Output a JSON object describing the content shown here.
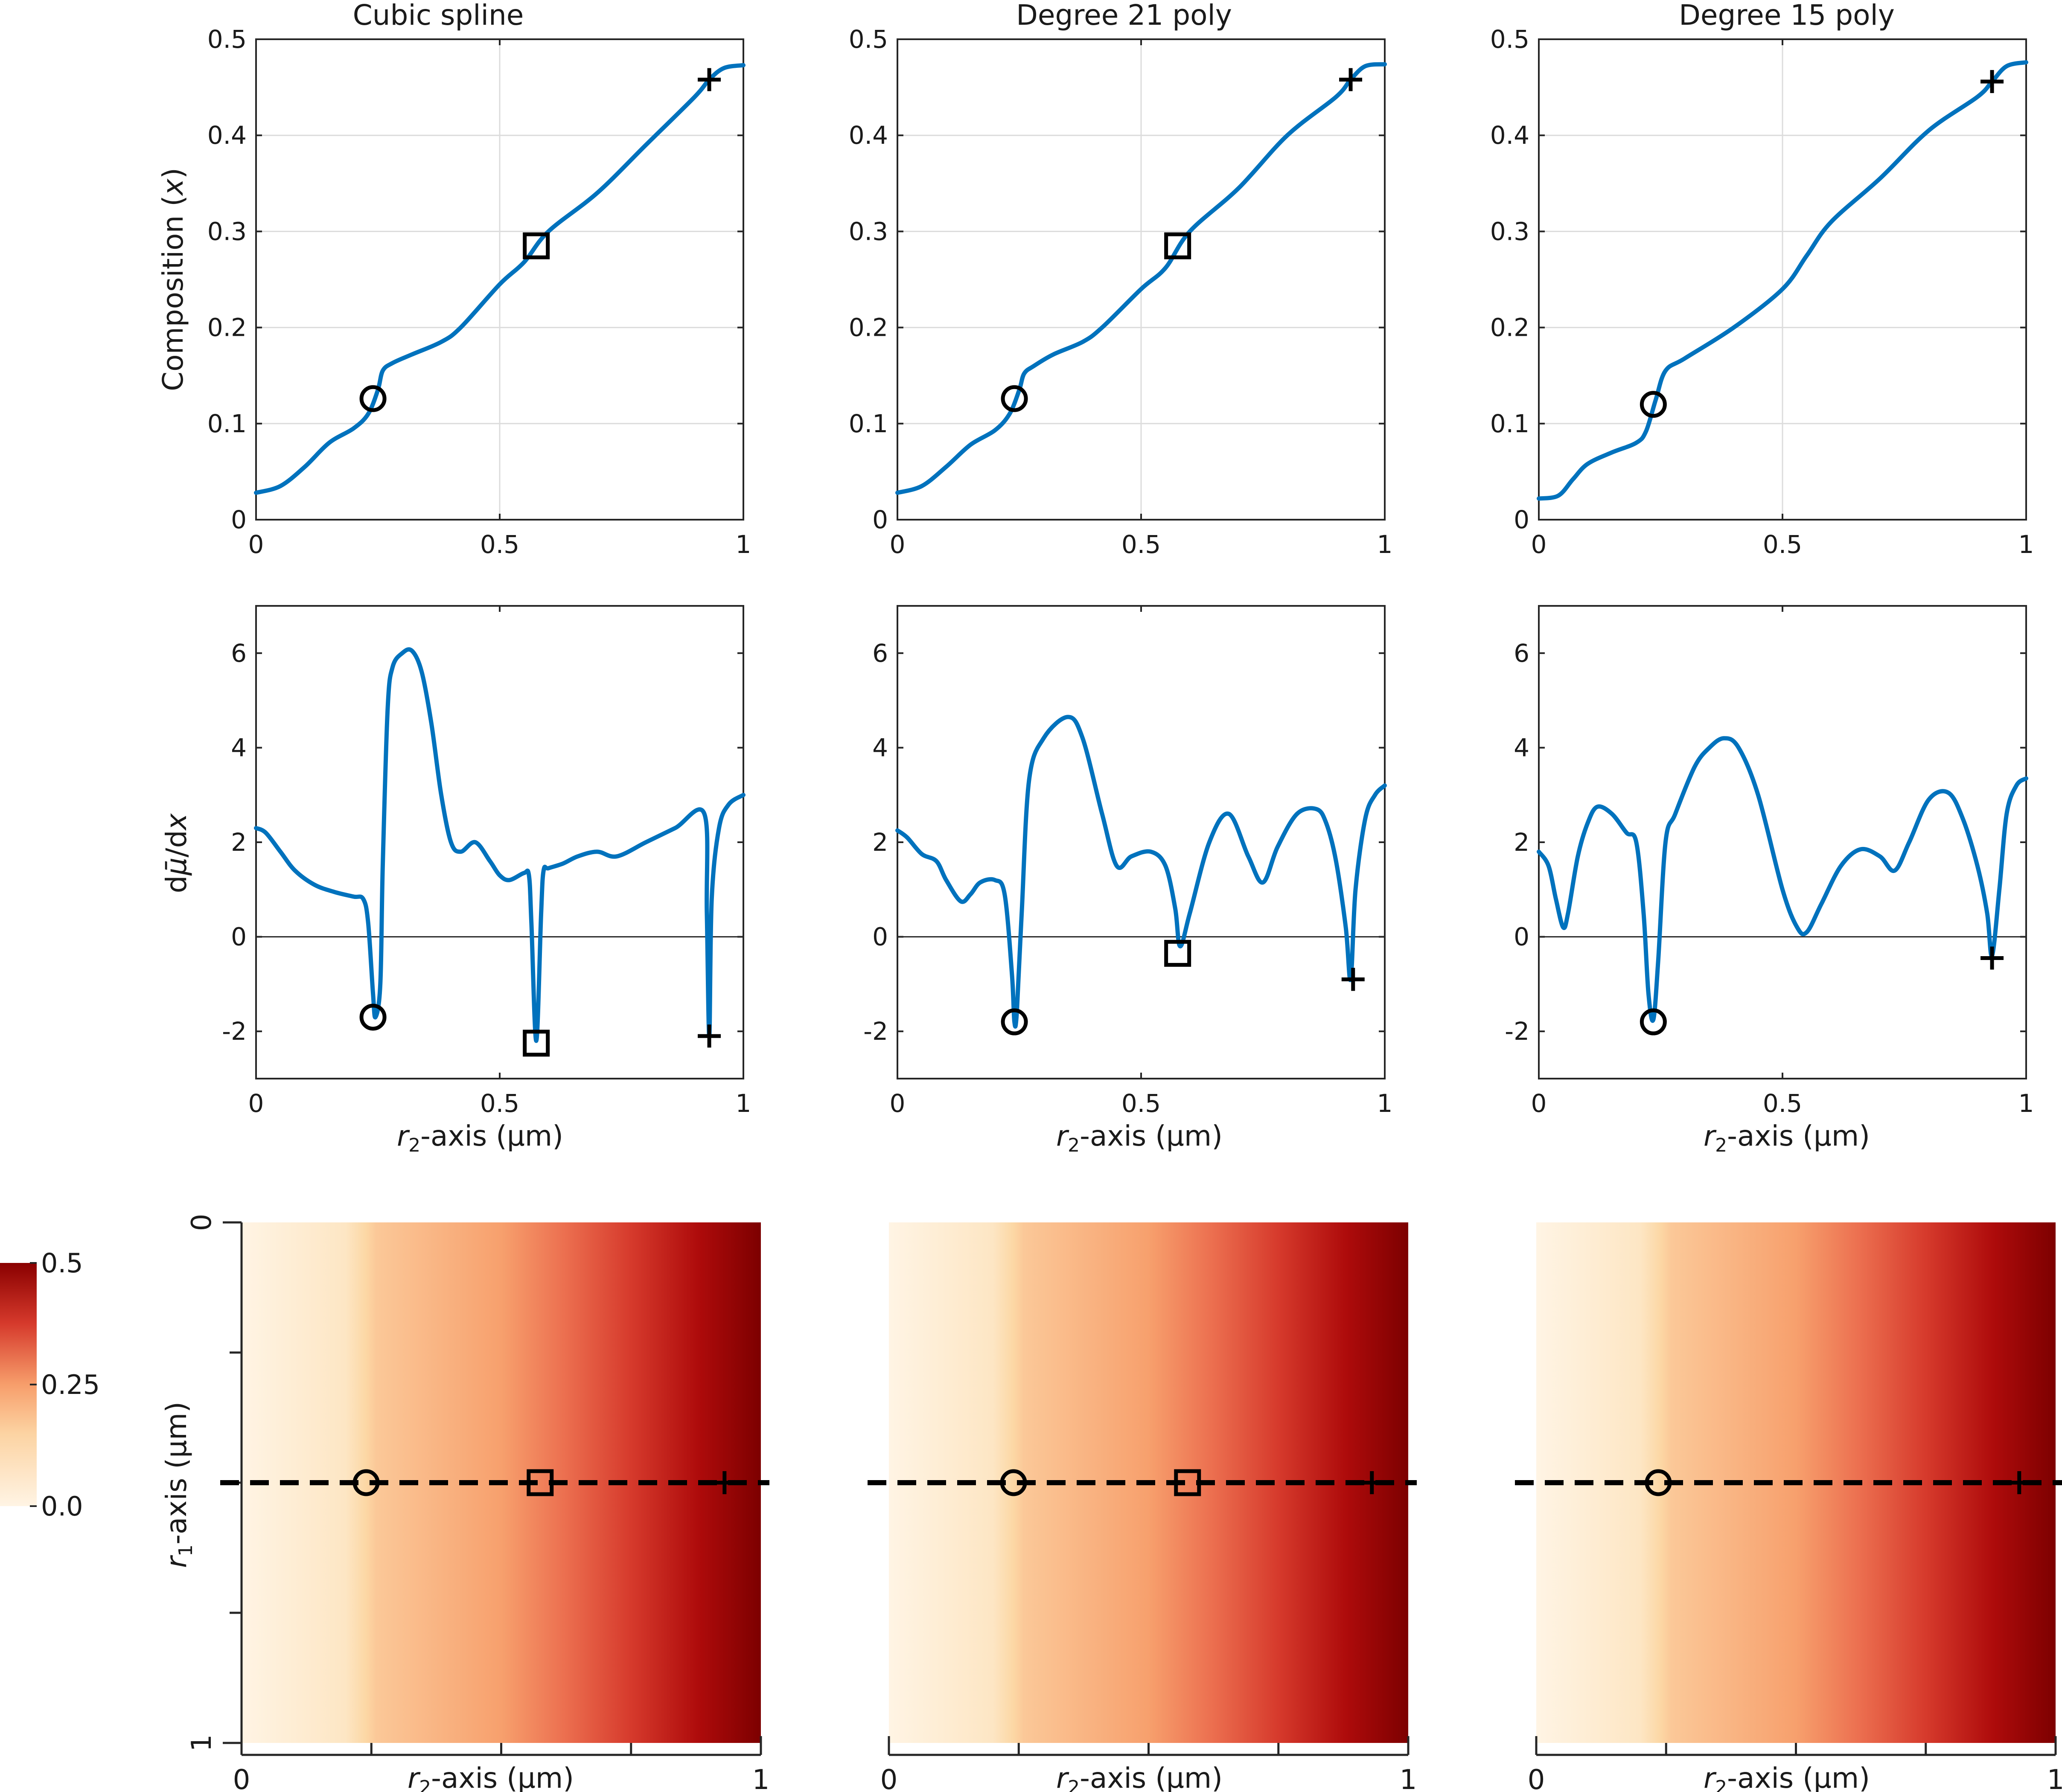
{
  "colors": {
    "line": "#0072bd",
    "axis": "#262626",
    "grid": "#dcdcdc",
    "marker": "#000000",
    "colormap": [
      "#fff5e6",
      "#fcd7a6",
      "#f7a06d",
      "#e8553a",
      "#c41f19",
      "#990000",
      "#7a0000"
    ]
  },
  "y_labels": {
    "composition_pre": "Composition (",
    "composition_var": "x",
    "composition_post": ")",
    "dmu_d": "d",
    "dmu_mu": "μ̄",
    "dmu_mid": "/d",
    "dmu_x": "x"
  },
  "x_label": {
    "r": "r",
    "sub2": "2",
    "rest": "-axis (μm)"
  },
  "r1_label": {
    "r": "r",
    "sub1": "1",
    "rest": "-axis (μm)"
  },
  "colorbar": {
    "ticks": [
      "0.5",
      "0.25",
      "0.0"
    ],
    "range": [
      0,
      0.5
    ]
  },
  "chart_data": [
    {
      "type": "line",
      "title": "Cubic spline",
      "panel": "composition",
      "xlim": [
        0,
        1
      ],
      "ylim": [
        0,
        0.5
      ],
      "xticks": [
        "0",
        "0.5",
        "1"
      ],
      "yticks": [
        "0",
        "0.1",
        "0.2",
        "0.3",
        "0.4",
        "0.5"
      ],
      "grid": true,
      "x": [
        0,
        0.05,
        0.1,
        0.15,
        0.2,
        0.23,
        0.25,
        0.26,
        0.28,
        0.32,
        0.38,
        0.42,
        0.5,
        0.55,
        0.6,
        0.7,
        0.8,
        0.9,
        0.93,
        0.96,
        1.0
      ],
      "y": [
        0.028,
        0.035,
        0.055,
        0.08,
        0.095,
        0.11,
        0.135,
        0.155,
        0.163,
        0.172,
        0.185,
        0.2,
        0.245,
        0.268,
        0.3,
        0.34,
        0.39,
        0.44,
        0.458,
        0.47,
        0.473
      ],
      "markers": [
        {
          "shape": "circle",
          "x": 0.24,
          "y": 0.126
        },
        {
          "shape": "square",
          "x": 0.575,
          "y": 0.285
        },
        {
          "shape": "plus",
          "x": 0.93,
          "y": 0.458
        }
      ]
    },
    {
      "type": "line",
      "title": "Degree 21 poly",
      "panel": "composition",
      "xlim": [
        0,
        1
      ],
      "ylim": [
        0,
        0.5
      ],
      "xticks": [
        "0",
        "0.5",
        "1"
      ],
      "yticks": [
        "0",
        "0.1",
        "0.2",
        "0.3",
        "0.4",
        "0.5"
      ],
      "grid": true,
      "x": [
        0,
        0.05,
        0.1,
        0.15,
        0.2,
        0.23,
        0.25,
        0.26,
        0.28,
        0.32,
        0.38,
        0.42,
        0.5,
        0.55,
        0.6,
        0.7,
        0.8,
        0.9,
        0.93,
        0.96,
        1.0
      ],
      "y": [
        0.028,
        0.035,
        0.055,
        0.078,
        0.093,
        0.11,
        0.135,
        0.152,
        0.16,
        0.172,
        0.185,
        0.2,
        0.24,
        0.262,
        0.3,
        0.345,
        0.4,
        0.44,
        0.458,
        0.472,
        0.474
      ],
      "markers": [
        {
          "shape": "circle",
          "x": 0.24,
          "y": 0.126
        },
        {
          "shape": "square",
          "x": 0.575,
          "y": 0.285
        },
        {
          "shape": "plus",
          "x": 0.93,
          "y": 0.458
        }
      ]
    },
    {
      "type": "line",
      "title": "Degree 15 poly",
      "panel": "composition",
      "xlim": [
        0,
        1
      ],
      "ylim": [
        0,
        0.5
      ],
      "xticks": [
        "0",
        "0.5",
        "1"
      ],
      "yticks": [
        "0",
        "0.1",
        "0.2",
        "0.3",
        "0.4",
        "0.5"
      ],
      "grid": true,
      "x": [
        0,
        0.04,
        0.07,
        0.1,
        0.15,
        0.2,
        0.22,
        0.24,
        0.26,
        0.3,
        0.4,
        0.5,
        0.55,
        0.6,
        0.7,
        0.8,
        0.9,
        0.93,
        0.96,
        1.0
      ],
      "y": [
        0.022,
        0.025,
        0.042,
        0.058,
        0.07,
        0.08,
        0.092,
        0.125,
        0.155,
        0.168,
        0.2,
        0.24,
        0.275,
        0.31,
        0.355,
        0.405,
        0.44,
        0.456,
        0.472,
        0.476
      ],
      "markers": [
        {
          "shape": "circle",
          "x": 0.235,
          "y": 0.12
        },
        {
          "shape": "plus",
          "x": 0.93,
          "y": 0.456
        }
      ]
    },
    {
      "type": "line",
      "panel": "derivative",
      "xlim": [
        0,
        1
      ],
      "ylim": [
        -3,
        7
      ],
      "xticks": [
        "0",
        "0.5",
        "1"
      ],
      "yticks": [
        "-2",
        "0",
        "2",
        "4",
        "6"
      ],
      "zero_line": true,
      "x": [
        0,
        0.02,
        0.05,
        0.08,
        0.12,
        0.16,
        0.2,
        0.22,
        0.23,
        0.24,
        0.245,
        0.255,
        0.26,
        0.27,
        0.28,
        0.3,
        0.32,
        0.34,
        0.36,
        0.38,
        0.4,
        0.42,
        0.45,
        0.48,
        0.5,
        0.52,
        0.55,
        0.56,
        0.565,
        0.575,
        0.585,
        0.59,
        0.6,
        0.63,
        0.66,
        0.7,
        0.74,
        0.8,
        0.86,
        0.92,
        0.925,
        0.93,
        0.935,
        0.95,
        0.97,
        1.0
      ],
      "y": [
        2.3,
        2.2,
        1.8,
        1.4,
        1.1,
        0.95,
        0.85,
        0.8,
        0.3,
        -1.2,
        -1.7,
        -1.0,
        1.5,
        4.8,
        5.7,
        6.0,
        6.05,
        5.6,
        4.5,
        3.0,
        2.0,
        1.8,
        2.0,
        1.6,
        1.3,
        1.2,
        1.35,
        1.3,
        0.3,
        -2.2,
        0.5,
        1.4,
        1.45,
        1.55,
        1.7,
        1.8,
        1.7,
        2.0,
        2.3,
        2.6,
        0.5,
        -2.1,
        0.8,
        2.3,
        2.8,
        3.0
      ],
      "markers": [
        {
          "shape": "circle",
          "x": 0.24,
          "y": -1.7
        },
        {
          "shape": "square",
          "x": 0.575,
          "y": -2.25
        },
        {
          "shape": "plus",
          "x": 0.93,
          "y": -2.1
        }
      ]
    },
    {
      "type": "line",
      "panel": "derivative",
      "xlim": [
        0,
        1
      ],
      "ylim": [
        -3,
        7
      ],
      "xticks": [
        "0",
        "0.5",
        "1"
      ],
      "yticks": [
        "-2",
        "0",
        "2",
        "4",
        "6"
      ],
      "zero_line": true,
      "x": [
        0,
        0.02,
        0.05,
        0.08,
        0.1,
        0.13,
        0.15,
        0.17,
        0.2,
        0.22,
        0.235,
        0.24,
        0.245,
        0.255,
        0.27,
        0.3,
        0.35,
        0.38,
        0.42,
        0.45,
        0.48,
        0.52,
        0.55,
        0.57,
        0.58,
        0.6,
        0.64,
        0.68,
        0.72,
        0.75,
        0.78,
        0.82,
        0.86,
        0.88,
        0.9,
        0.92,
        0.93,
        0.94,
        0.96,
        0.98,
        1.0
      ],
      "y": [
        2.25,
        2.1,
        1.75,
        1.6,
        1.2,
        0.75,
        0.9,
        1.15,
        1.2,
        0.9,
        -0.8,
        -1.8,
        -1.6,
        0.5,
        3.3,
        4.2,
        4.65,
        4.2,
        2.6,
        1.5,
        1.7,
        1.8,
        1.5,
        0.6,
        -0.2,
        0.5,
        2.0,
        2.6,
        1.7,
        1.15,
        1.9,
        2.6,
        2.7,
        2.4,
        1.6,
        0.2,
        -0.9,
        1.0,
        2.5,
        3.0,
        3.2
      ],
      "markers": [
        {
          "shape": "circle",
          "x": 0.24,
          "y": -1.8
        },
        {
          "shape": "square",
          "x": 0.575,
          "y": -0.35
        },
        {
          "shape": "plus",
          "x": 0.935,
          "y": -0.9
        }
      ]
    },
    {
      "type": "line",
      "panel": "derivative",
      "xlim": [
        0,
        1
      ],
      "ylim": [
        -3,
        7
      ],
      "xticks": [
        "0",
        "0.5",
        "1"
      ],
      "yticks": [
        "-2",
        "0",
        "2",
        "4",
        "6"
      ],
      "zero_line": true,
      "x": [
        0,
        0.02,
        0.035,
        0.05,
        0.06,
        0.08,
        0.1,
        0.12,
        0.15,
        0.18,
        0.2,
        0.215,
        0.225,
        0.235,
        0.245,
        0.26,
        0.28,
        0.32,
        0.35,
        0.38,
        0.41,
        0.45,
        0.5,
        0.53,
        0.55,
        0.58,
        0.62,
        0.66,
        0.7,
        0.73,
        0.76,
        0.8,
        0.84,
        0.87,
        0.9,
        0.92,
        0.93,
        0.945,
        0.96,
        0.98,
        1.0
      ],
      "y": [
        1.8,
        1.5,
        0.8,
        0.2,
        0.5,
        1.7,
        2.4,
        2.75,
        2.6,
        2.2,
        2.0,
        0.5,
        -1.2,
        -1.75,
        -0.5,
        2.0,
        2.6,
        3.6,
        4.0,
        4.2,
        4.0,
        3.0,
        1.0,
        0.2,
        0.1,
        0.7,
        1.5,
        1.85,
        1.7,
        1.4,
        2.0,
        2.9,
        3.05,
        2.5,
        1.5,
        0.5,
        -0.4,
        1.0,
        2.6,
        3.2,
        3.35
      ],
      "markers": [
        {
          "shape": "circle",
          "x": 0.235,
          "y": -1.8
        },
        {
          "shape": "plus",
          "x": 0.93,
          "y": -0.45
        }
      ]
    },
    {
      "type": "heatmap",
      "panel": "map",
      "xlim": [
        0,
        1
      ],
      "ylim": [
        0,
        1
      ],
      "xticks": [
        "0",
        "1"
      ],
      "yticks": [
        "0",
        "1"
      ],
      "line_r1": 0.5,
      "markers": [
        {
          "shape": "circle",
          "x": 0.24
        },
        {
          "shape": "square",
          "x": 0.575
        },
        {
          "shape": "plus",
          "x": 0.93
        }
      ]
    },
    {
      "type": "heatmap",
      "panel": "map",
      "xlim": [
        0,
        1
      ],
      "ylim": [
        0,
        1
      ],
      "xticks": [
        "0",
        "1"
      ],
      "line_r1": 0.5,
      "markers": [
        {
          "shape": "circle",
          "x": 0.24
        },
        {
          "shape": "square",
          "x": 0.575
        },
        {
          "shape": "plus",
          "x": 0.93
        }
      ]
    },
    {
      "type": "heatmap",
      "panel": "map",
      "xlim": [
        0,
        1
      ],
      "ylim": [
        0,
        1
      ],
      "xticks": [
        "0",
        "1"
      ],
      "line_r1": 0.5,
      "markers": [
        {
          "shape": "circle",
          "x": 0.235
        },
        {
          "shape": "plus",
          "x": 0.93
        }
      ]
    }
  ]
}
